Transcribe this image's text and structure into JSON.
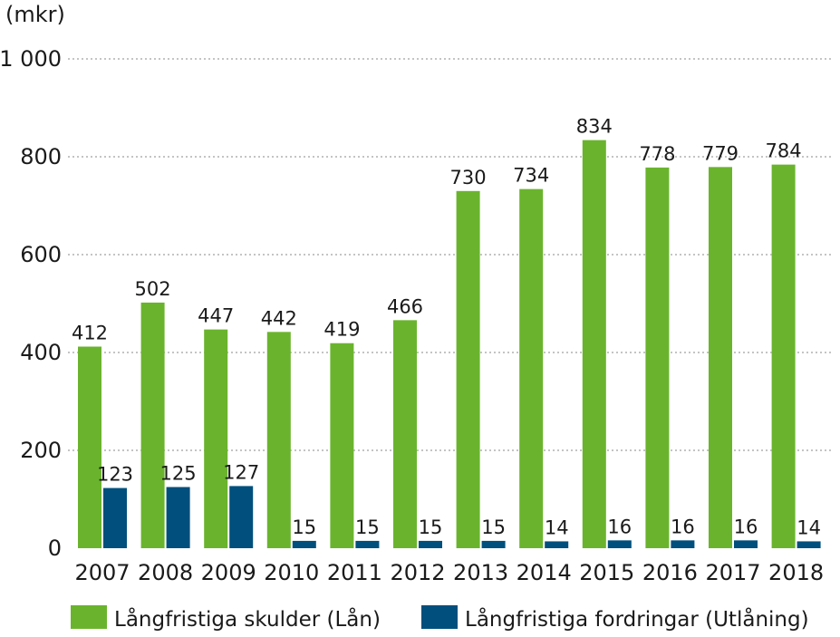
{
  "chart_data": {
    "type": "bar",
    "unit_label": "(mkr)",
    "categories": [
      "2007",
      "2008",
      "2009",
      "2010",
      "2011",
      "2012",
      "2013",
      "2014",
      "2015",
      "2016",
      "2017",
      "2018"
    ],
    "series": [
      {
        "name": "Långfristiga skulder (Lån)",
        "color": "#6ab42d",
        "values": [
          412,
          502,
          447,
          442,
          419,
          466,
          730,
          734,
          834,
          778,
          779,
          784
        ]
      },
      {
        "name": "Långfristiga fordringar (Utlåning)",
        "color": "#004f7c",
        "values": [
          123,
          125,
          127,
          15,
          15,
          15,
          15,
          14,
          16,
          16,
          16,
          14
        ]
      }
    ],
    "yticks": [
      {
        "value": 0,
        "label": "0"
      },
      {
        "value": 200,
        "label": "200"
      },
      {
        "value": 400,
        "label": "400"
      },
      {
        "value": 600,
        "label": "600"
      },
      {
        "value": 800,
        "label": "800"
      },
      {
        "value": 1000,
        "label": "1 000"
      }
    ],
    "ylim": [
      0,
      1000
    ],
    "grid": true,
    "legend_position": "bottom"
  }
}
